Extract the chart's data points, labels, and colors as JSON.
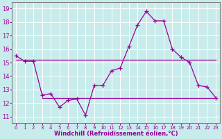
{
  "title": "",
  "xlabel": "Windchill (Refroidissement éolien,°C)",
  "ylabel": "",
  "background_color": "#c8ecec",
  "line_color": "#990099",
  "grid_color": "#ffffff",
  "xlim": [
    -0.5,
    23.5
  ],
  "ylim": [
    10.5,
    19.5
  ],
  "yticks": [
    11,
    12,
    13,
    14,
    15,
    16,
    17,
    18,
    19
  ],
  "xticks": [
    0,
    1,
    2,
    3,
    4,
    5,
    6,
    7,
    8,
    9,
    10,
    11,
    12,
    13,
    14,
    15,
    16,
    17,
    18,
    19,
    20,
    21,
    22,
    23
  ],
  "series1_x": [
    0,
    1,
    2,
    3,
    4,
    5,
    6,
    7,
    8,
    9,
    10,
    11,
    12,
    13,
    14,
    15,
    16,
    17,
    18,
    19,
    20,
    21,
    22,
    23
  ],
  "series1_y": [
    15.5,
    15.1,
    15.1,
    12.6,
    12.7,
    11.7,
    12.2,
    12.3,
    11.1,
    13.3,
    13.3,
    14.4,
    14.6,
    16.2,
    17.8,
    18.8,
    18.1,
    18.1,
    16.0,
    15.4,
    15.0,
    13.3,
    13.2,
    12.4
  ],
  "series2_x": [
    0,
    23
  ],
  "series2_y": [
    15.2,
    15.2
  ],
  "series3_x": [
    3,
    23
  ],
  "series3_y": [
    12.4,
    12.4
  ],
  "font_size_xlabel": 6,
  "font_size_yticks": 6,
  "font_size_xticks": 5,
  "marker_size": 3,
  "line_width": 0.9
}
